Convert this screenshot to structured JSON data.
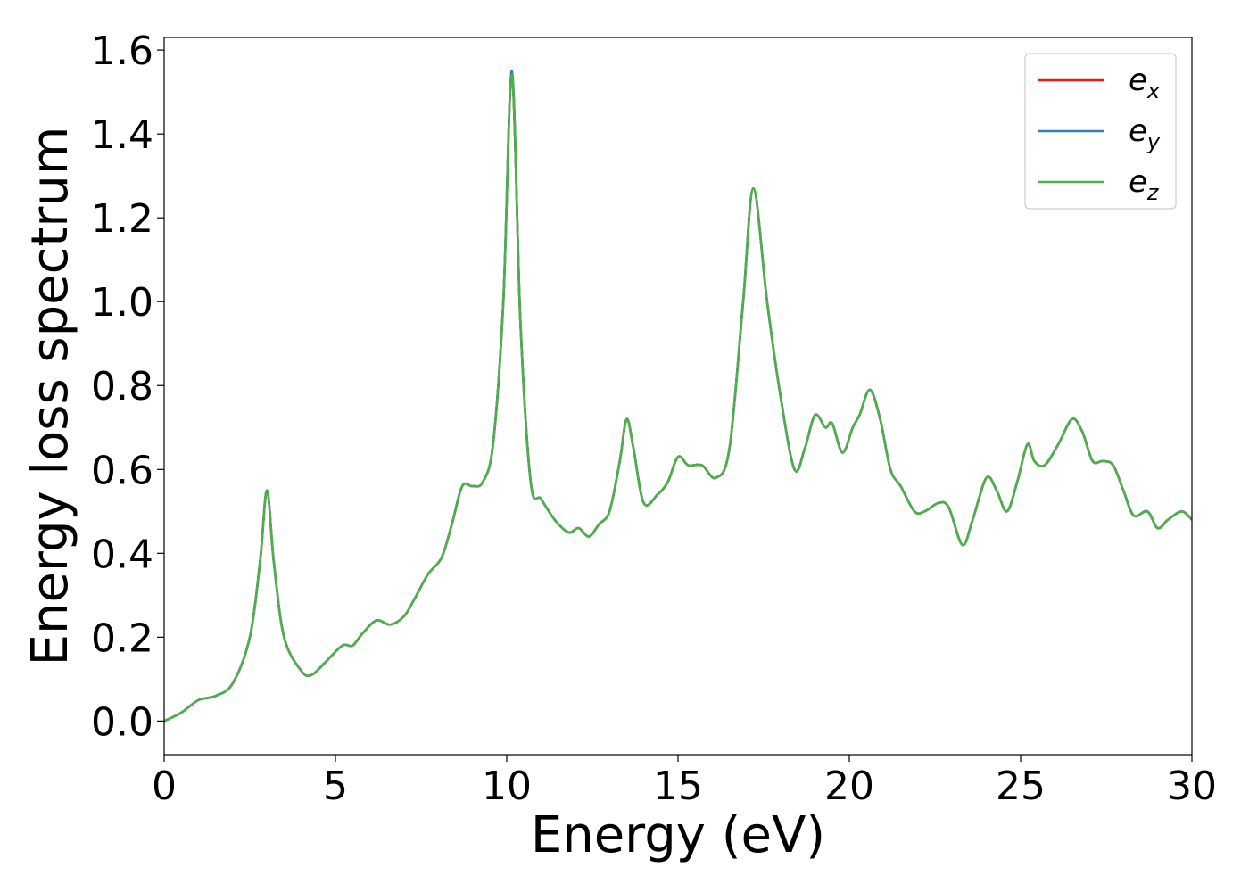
{
  "chart_data": {
    "type": "line",
    "title": "",
    "xlabel": "Energy (eV)",
    "ylabel": "Energy loss spectrum",
    "xlim": [
      0,
      30
    ],
    "ylim": [
      -0.08,
      1.63
    ],
    "xticks": [
      0,
      5,
      10,
      15,
      20,
      25,
      30
    ],
    "xtick_labels": [
      "0",
      "5",
      "10",
      "15",
      "20",
      "25",
      "30"
    ],
    "yticks": [
      0.0,
      0.2,
      0.4,
      0.6,
      0.8,
      1.0,
      1.2,
      1.4,
      1.6
    ],
    "ytick_labels": [
      "0.0",
      "0.2",
      "0.4",
      "0.6",
      "0.8",
      "1.0",
      "1.2",
      "1.4",
      "1.6"
    ],
    "grid": false,
    "legend_position": "top-right",
    "legend": [
      {
        "base": "e",
        "sub": "x",
        "color": "#e41a1c"
      },
      {
        "base": "e",
        "sub": "y",
        "color": "#377eb8"
      },
      {
        "base": "e",
        "sub": "z",
        "color": "#4daf4a"
      }
    ],
    "x": [
      0,
      0.5,
      1.0,
      1.5,
      2.0,
      2.5,
      2.8,
      3.0,
      3.2,
      3.5,
      4.0,
      4.3,
      4.7,
      5.2,
      5.5,
      5.8,
      6.2,
      6.6,
      7.0,
      7.3,
      7.7,
      8.1,
      8.4,
      8.7,
      9.0,
      9.3,
      9.6,
      9.9,
      10.15,
      10.4,
      10.7,
      11.0,
      11.4,
      11.8,
      12.1,
      12.4,
      12.7,
      13.0,
      13.3,
      13.5,
      13.7,
      14.0,
      14.4,
      14.7,
      15.0,
      15.3,
      15.7,
      16.1,
      16.5,
      16.9,
      17.2,
      17.6,
      18.0,
      18.4,
      18.7,
      19.0,
      19.3,
      19.5,
      19.8,
      20.1,
      20.3,
      20.6,
      20.9,
      21.2,
      21.5,
      21.9,
      22.2,
      22.6,
      22.9,
      23.3,
      23.6,
      24.0,
      24.3,
      24.6,
      24.9,
      25.2,
      25.4,
      25.7,
      26.1,
      26.5,
      26.8,
      27.1,
      27.4,
      27.7,
      28.0,
      28.3,
      28.7,
      29.0,
      29.3,
      29.7,
      30.0
    ],
    "series": [
      {
        "name": "e_x",
        "color": "#e41a1c",
        "values": [
          0.0,
          0.02,
          0.05,
          0.06,
          0.09,
          0.2,
          0.38,
          0.55,
          0.38,
          0.2,
          0.12,
          0.11,
          0.14,
          0.18,
          0.18,
          0.21,
          0.24,
          0.23,
          0.25,
          0.29,
          0.35,
          0.39,
          0.47,
          0.56,
          0.56,
          0.57,
          0.66,
          1.0,
          1.54,
          0.95,
          0.57,
          0.53,
          0.48,
          0.45,
          0.46,
          0.44,
          0.47,
          0.5,
          0.62,
          0.72,
          0.65,
          0.52,
          0.54,
          0.57,
          0.63,
          0.61,
          0.61,
          0.58,
          0.65,
          1.0,
          1.27,
          1.0,
          0.77,
          0.6,
          0.65,
          0.73,
          0.7,
          0.71,
          0.64,
          0.7,
          0.73,
          0.79,
          0.72,
          0.6,
          0.56,
          0.5,
          0.5,
          0.52,
          0.51,
          0.42,
          0.48,
          0.58,
          0.55,
          0.5,
          0.57,
          0.66,
          0.62,
          0.61,
          0.66,
          0.72,
          0.69,
          0.62,
          0.62,
          0.61,
          0.55,
          0.49,
          0.5,
          0.46,
          0.48,
          0.5,
          0.48
        ]
      },
      {
        "name": "e_y",
        "color": "#377eb8",
        "values": [
          0.0,
          0.02,
          0.05,
          0.06,
          0.09,
          0.2,
          0.38,
          0.55,
          0.38,
          0.2,
          0.12,
          0.11,
          0.14,
          0.18,
          0.18,
          0.21,
          0.24,
          0.23,
          0.25,
          0.29,
          0.35,
          0.39,
          0.47,
          0.56,
          0.56,
          0.57,
          0.66,
          1.0,
          1.55,
          0.95,
          0.57,
          0.53,
          0.48,
          0.45,
          0.46,
          0.44,
          0.47,
          0.5,
          0.62,
          0.72,
          0.65,
          0.52,
          0.54,
          0.57,
          0.63,
          0.61,
          0.61,
          0.58,
          0.65,
          1.0,
          1.27,
          1.0,
          0.77,
          0.6,
          0.65,
          0.73,
          0.7,
          0.71,
          0.64,
          0.7,
          0.73,
          0.79,
          0.72,
          0.6,
          0.56,
          0.5,
          0.5,
          0.52,
          0.51,
          0.42,
          0.48,
          0.58,
          0.55,
          0.5,
          0.57,
          0.66,
          0.62,
          0.61,
          0.66,
          0.72,
          0.69,
          0.62,
          0.62,
          0.61,
          0.55,
          0.49,
          0.5,
          0.46,
          0.48,
          0.5,
          0.48
        ]
      },
      {
        "name": "e_z",
        "color": "#4daf4a",
        "values": [
          0.0,
          0.02,
          0.05,
          0.06,
          0.09,
          0.2,
          0.38,
          0.55,
          0.38,
          0.2,
          0.12,
          0.11,
          0.14,
          0.18,
          0.18,
          0.21,
          0.24,
          0.23,
          0.25,
          0.29,
          0.35,
          0.39,
          0.47,
          0.56,
          0.56,
          0.57,
          0.66,
          1.0,
          1.54,
          0.95,
          0.57,
          0.53,
          0.48,
          0.45,
          0.46,
          0.44,
          0.47,
          0.5,
          0.62,
          0.72,
          0.65,
          0.52,
          0.54,
          0.57,
          0.63,
          0.61,
          0.61,
          0.58,
          0.65,
          1.0,
          1.27,
          1.0,
          0.77,
          0.6,
          0.65,
          0.73,
          0.7,
          0.71,
          0.64,
          0.7,
          0.73,
          0.79,
          0.72,
          0.6,
          0.56,
          0.5,
          0.5,
          0.52,
          0.51,
          0.42,
          0.48,
          0.58,
          0.55,
          0.5,
          0.57,
          0.66,
          0.62,
          0.61,
          0.66,
          0.72,
          0.69,
          0.62,
          0.62,
          0.61,
          0.55,
          0.49,
          0.5,
          0.46,
          0.48,
          0.5,
          0.48
        ]
      }
    ]
  }
}
